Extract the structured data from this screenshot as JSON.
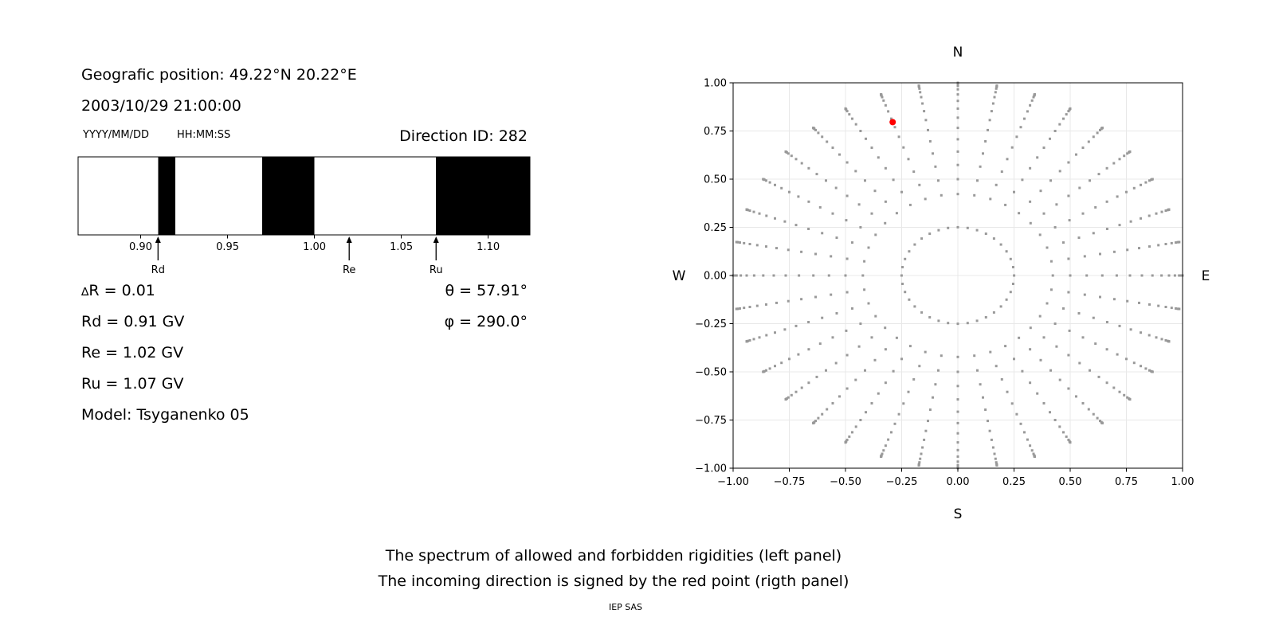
{
  "header": {
    "position_line": "Geografic position: 49.22°N 20.22°E",
    "datetime_line": "2003/10/29 21:00:00",
    "date_format_label": "YYYY/MM/DD",
    "time_format_label": "HH:MM:SS",
    "direction_id": "Direction ID: 282"
  },
  "info_panel": {
    "delta_symbol": "∆",
    "delta_rest": "R = 0.01",
    "rd": "Rd = 0.91 GV",
    "re": "Re = 1.02 GV",
    "ru": "Ru = 1.07 GV",
    "model": "Model: Tsyganenko 05",
    "theta": "θ = 57.91°",
    "phi": "φ = 290.0°"
  },
  "caption": {
    "line1": "The spectrum of allowed and forbidden rigidities (left panel)",
    "line2": "The incoming direction is signed by the red point (rigth panel)",
    "credit": "IEP SAS"
  },
  "chart_data": [
    {
      "type": "area",
      "panel": "rigidity-spectrum",
      "xlim": [
        0.864,
        1.124
      ],
      "xtick_values": [
        0.9,
        0.95,
        1.0,
        1.05,
        1.1
      ],
      "xtick_labels": [
        "0.90",
        "0.95",
        "1.00",
        "1.05",
        "1.10"
      ],
      "forbidden_color": "#ffffff",
      "allowed_color": "#000000",
      "black_intervals": [
        [
          0.91,
          0.92
        ],
        [
          0.97,
          1.0
        ],
        [
          1.07,
          1.124
        ]
      ],
      "arrow_markers": [
        {
          "label": "Rd",
          "value": 0.91
        },
        {
          "label": "Re",
          "value": 1.02
        },
        {
          "label": "Ru",
          "value": 1.07
        }
      ]
    },
    {
      "type": "scatter",
      "panel": "direction-map",
      "xlim": [
        -1,
        1
      ],
      "ylim": [
        -1,
        1
      ],
      "xtick_values": [
        -1.0,
        -0.75,
        -0.5,
        -0.25,
        0.0,
        0.25,
        0.5,
        0.75,
        1.0
      ],
      "xtick_labels": [
        "−1.00",
        "−0.75",
        "−0.50",
        "−0.25",
        "0.00",
        "0.25",
        "0.50",
        "0.75",
        "1.00"
      ],
      "ytick_values": [
        1.0,
        0.75,
        0.5,
        0.25,
        0.0,
        -0.25,
        -0.5,
        -0.75,
        -1.0
      ],
      "ytick_labels": [
        "1.00",
        "0.75",
        "0.50",
        "0.25",
        "0.00",
        "−0.25",
        "−0.50",
        "−0.75",
        "−1.00"
      ],
      "grid": true,
      "grid_color": "#e8e8e8",
      "compass": {
        "north": "N",
        "east": "E",
        "south": "S",
        "west": "W"
      },
      "dot_color": "#999999",
      "azimuth_count": 36,
      "zenith_angles_deg": [
        14.5,
        25,
        30,
        35,
        40,
        45,
        50,
        55,
        60,
        65,
        70,
        75,
        80,
        83.5,
        86,
        88,
        89.3,
        90
      ],
      "radius_rule": "sin(zenith)",
      "red_point": {
        "x": -0.29,
        "y": 0.796,
        "color": "#ff0000"
      }
    }
  ]
}
